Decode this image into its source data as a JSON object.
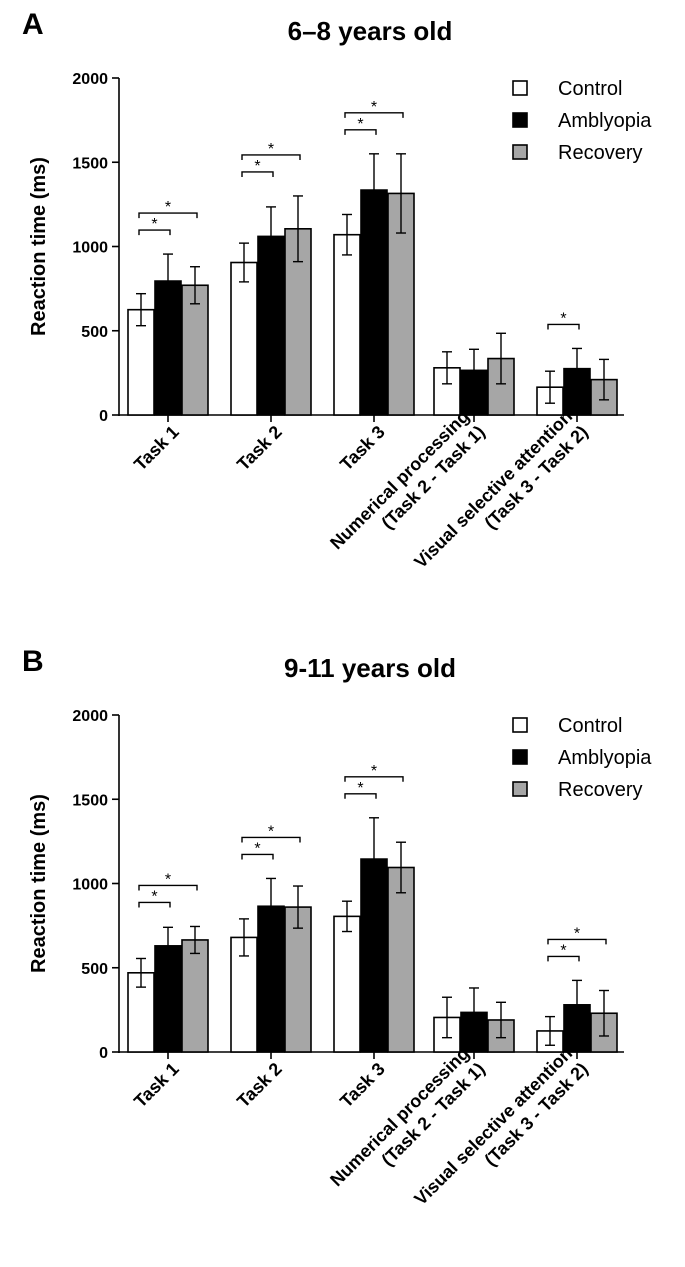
{
  "chart_data": [
    {
      "type": "bar",
      "panel_label": "A",
      "title": "6–8 years old",
      "ylabel": "Reaction time (ms)",
      "xlabel": "",
      "ylim": [
        0,
        2000
      ],
      "yticks": [
        0,
        500,
        1000,
        1500,
        2000
      ],
      "categories": [
        [
          "Task 1"
        ],
        [
          "Task 2"
        ],
        [
          "Task 3"
        ],
        [
          "Numerical processing",
          "(Task 2 - Task 1)"
        ],
        [
          "Visual selective attention",
          "(Task 3 - Task 2)"
        ]
      ],
      "series": [
        {
          "name": "Control",
          "color": "#ffffff",
          "values": [
            625,
            905,
            1070,
            280,
            165
          ],
          "errors": [
            95,
            115,
            120,
            95,
            95
          ]
        },
        {
          "name": "Amblyopia",
          "color": "#000000",
          "values": [
            795,
            1060,
            1335,
            265,
            275
          ],
          "errors": [
            160,
            175,
            215,
            125,
            120
          ]
        },
        {
          "name": "Recovery",
          "color": "#a6a6a6",
          "values": [
            770,
            1105,
            1315,
            335,
            210
          ],
          "errors": [
            110,
            195,
            235,
            150,
            120
          ]
        }
      ],
      "significance": [
        {
          "category": 0,
          "from": 0,
          "to": 1,
          "label": "*",
          "level": 1
        },
        {
          "category": 0,
          "from": 0,
          "to": 2,
          "label": "*",
          "level": 2
        },
        {
          "category": 1,
          "from": 0,
          "to": 1,
          "label": "*",
          "level": 1
        },
        {
          "category": 1,
          "from": 0,
          "to": 2,
          "label": "*",
          "level": 2
        },
        {
          "category": 2,
          "from": 0,
          "to": 1,
          "label": "*",
          "level": 1
        },
        {
          "category": 2,
          "from": 0,
          "to": 2,
          "label": "*",
          "level": 2
        },
        {
          "category": 4,
          "from": 0,
          "to": 1,
          "label": "*",
          "level": 1
        }
      ],
      "legend_position": "top-right"
    },
    {
      "type": "bar",
      "panel_label": "B",
      "title": "9-11 years old",
      "ylabel": "Reaction time (ms)",
      "xlabel": "",
      "ylim": [
        0,
        2000
      ],
      "yticks": [
        0,
        500,
        1000,
        1500,
        2000
      ],
      "categories": [
        [
          "Task 1"
        ],
        [
          "Task 2"
        ],
        [
          "Task 3"
        ],
        [
          "Numerical processing",
          "(Task 2 - Task 1)"
        ],
        [
          "Visual selective attention",
          "(Task 3 - Task 2)"
        ]
      ],
      "series": [
        {
          "name": "Control",
          "color": "#ffffff",
          "values": [
            470,
            680,
            805,
            205,
            125
          ],
          "errors": [
            85,
            110,
            90,
            120,
            85
          ]
        },
        {
          "name": "Amblyopia",
          "color": "#000000",
          "values": [
            630,
            865,
            1145,
            235,
            280
          ],
          "errors": [
            110,
            165,
            245,
            145,
            145
          ]
        },
        {
          "name": "Recovery",
          "color": "#a6a6a6",
          "values": [
            665,
            860,
            1095,
            190,
            230
          ],
          "errors": [
            80,
            125,
            150,
            105,
            135
          ]
        }
      ],
      "significance": [
        {
          "category": 0,
          "from": 0,
          "to": 1,
          "label": "*",
          "level": 1
        },
        {
          "category": 0,
          "from": 0,
          "to": 2,
          "label": "*",
          "level": 2
        },
        {
          "category": 1,
          "from": 0,
          "to": 1,
          "label": "*",
          "level": 1
        },
        {
          "category": 1,
          "from": 0,
          "to": 2,
          "label": "*",
          "level": 2
        },
        {
          "category": 2,
          "from": 0,
          "to": 1,
          "label": "*",
          "level": 1
        },
        {
          "category": 2,
          "from": 0,
          "to": 2,
          "label": "*",
          "level": 2
        },
        {
          "category": 4,
          "from": 0,
          "to": 1,
          "label": "*",
          "level": 1
        },
        {
          "category": 4,
          "from": 0,
          "to": 2,
          "label": "*",
          "level": 2
        }
      ],
      "legend_position": "top-right"
    }
  ]
}
